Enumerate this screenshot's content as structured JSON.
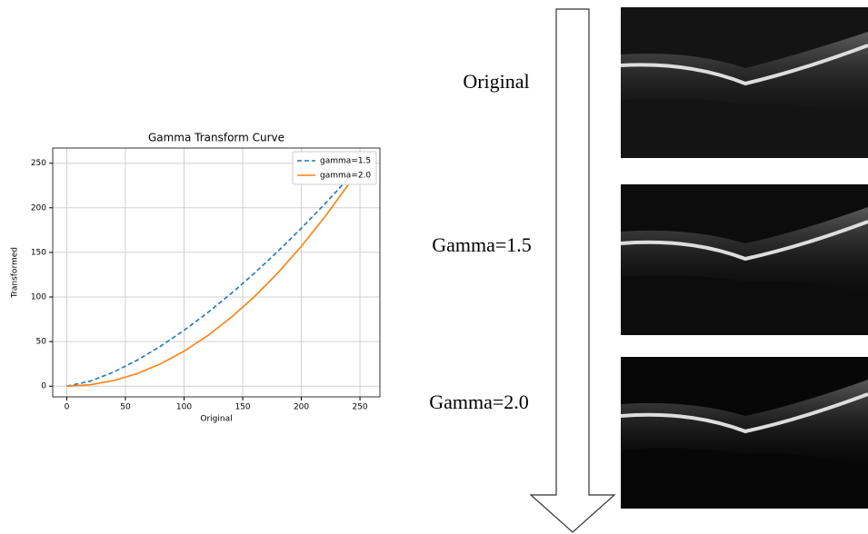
{
  "chart_data": {
    "type": "line",
    "title": "Gamma Transform Curve",
    "x_label": "Original",
    "y_label": "Transformed",
    "x": [
      0,
      20,
      40,
      60,
      80,
      100,
      120,
      140,
      160,
      180,
      200,
      220,
      240
    ],
    "series": [
      {
        "name": "gamma=1.5",
        "color": "#1f77b4",
        "dashed": true,
        "values": [
          0,
          5.6,
          15.8,
          29.1,
          44.8,
          62.6,
          82.3,
          103.7,
          126.7,
          151.2,
          177.1,
          204.3,
          232.8
        ]
      },
      {
        "name": "gamma=2.0",
        "color": "#ff7f0e",
        "dashed": false,
        "values": [
          0,
          1.6,
          6.3,
          14.1,
          25.1,
          39.2,
          56.5,
          76.9,
          100.4,
          127.1,
          156.9,
          189.8,
          225.9
        ]
      }
    ],
    "xlim": [
      -12,
      267
    ],
    "ylim": [
      -12,
      267
    ],
    "xticks": [
      0,
      50,
      100,
      150,
      200,
      250
    ],
    "yticks": [
      0,
      50,
      100,
      150,
      200,
      250
    ],
    "grid": true,
    "legend": "upper-right"
  },
  "panels": [
    {
      "label": "Original"
    },
    {
      "label": "Gamma=1.5"
    },
    {
      "label": "Gamma=2.0"
    }
  ]
}
